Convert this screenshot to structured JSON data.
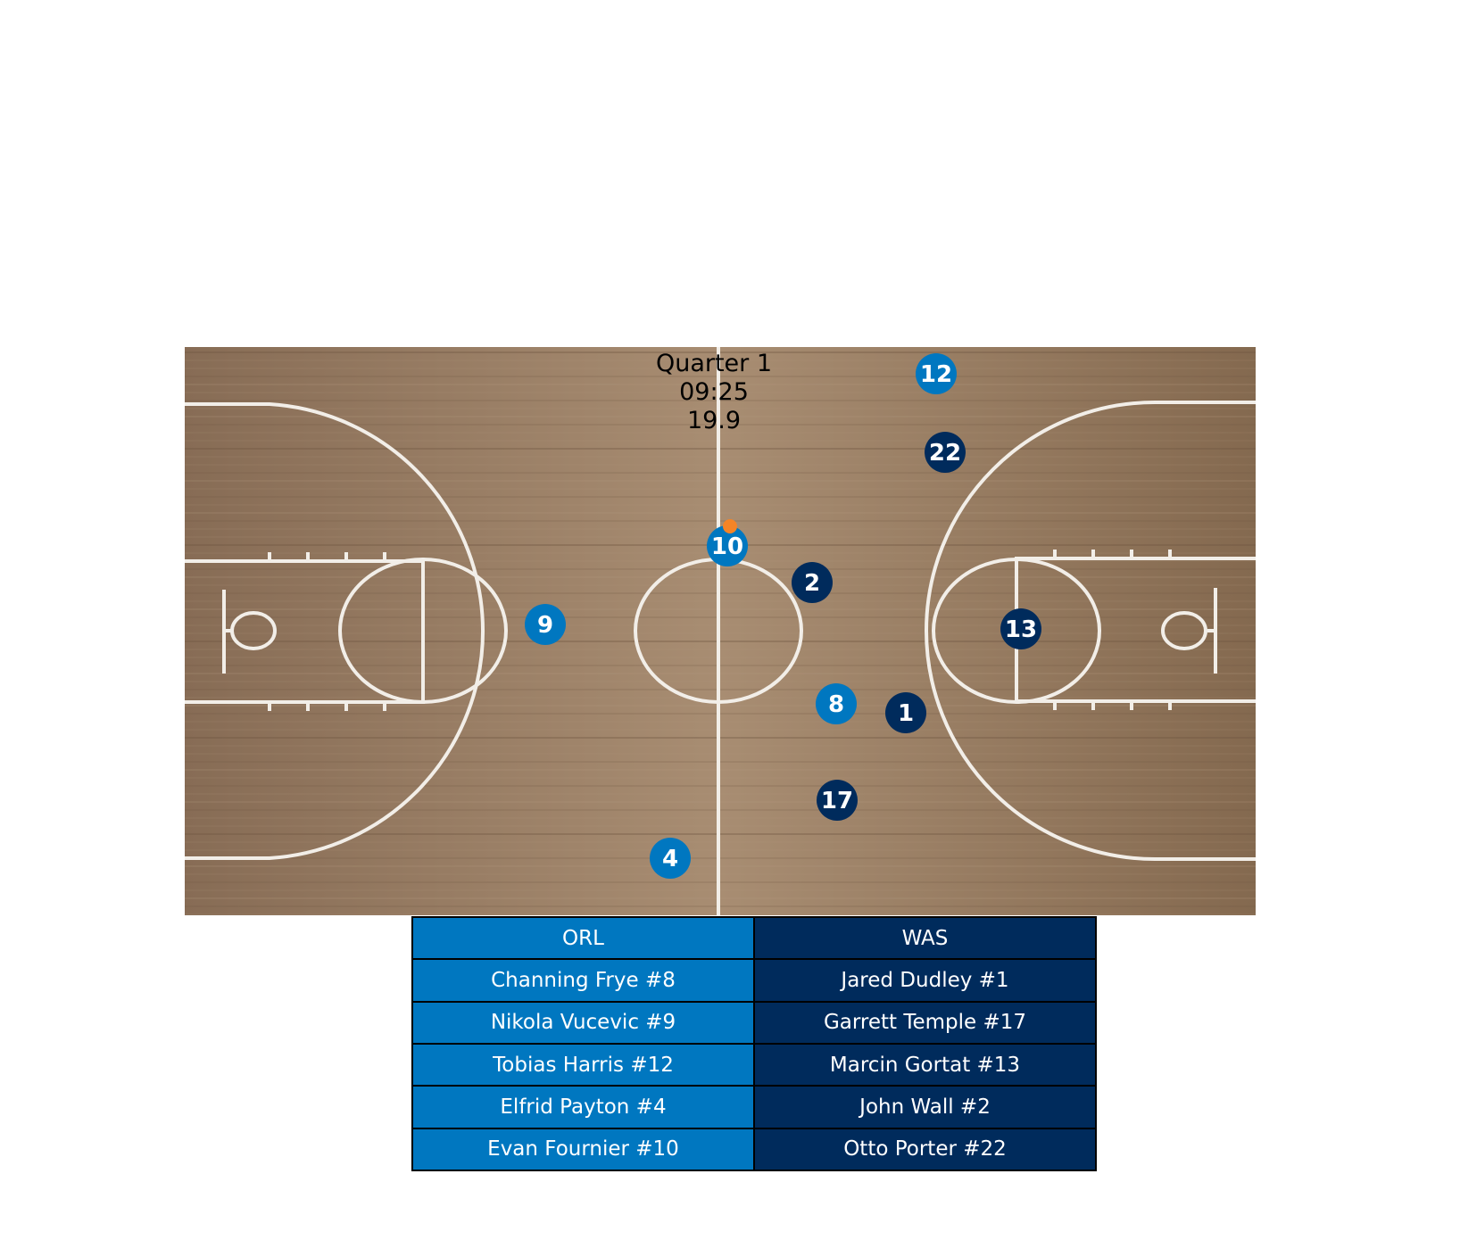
{
  "game_clock": {
    "quarter": "Quarter 1",
    "time": "09:25",
    "shot_clock": "19.9"
  },
  "teams": {
    "home": {
      "abbr": "ORL",
      "color": "#0077c0"
    },
    "away": {
      "abbr": "WAS",
      "color": "#002b5c"
    }
  },
  "ball": {
    "color": "#f58426"
  },
  "players_on_court": [
    {
      "team": "ORL",
      "number": "12"
    },
    {
      "team": "WAS",
      "number": "22"
    },
    {
      "team": "ORL",
      "number": "10"
    },
    {
      "team": "WAS",
      "number": "2"
    },
    {
      "team": "ORL",
      "number": "9"
    },
    {
      "team": "WAS",
      "number": "13"
    },
    {
      "team": "ORL",
      "number": "8"
    },
    {
      "team": "WAS",
      "number": "1"
    },
    {
      "team": "WAS",
      "number": "17"
    },
    {
      "team": "ORL",
      "number": "4"
    }
  ],
  "roster": {
    "header": {
      "orl": "ORL",
      "was": "WAS"
    },
    "rows": [
      {
        "orl": "Channing Frye #8",
        "was": "Jared Dudley #1"
      },
      {
        "orl": "Nikola Vucevic #9",
        "was": "Garrett Temple #17"
      },
      {
        "orl": "Tobias Harris #12",
        "was": "Marcin Gortat #13"
      },
      {
        "orl": "Elfrid Payton #4",
        "was": "John Wall #2"
      },
      {
        "orl": "Evan Fournier #10",
        "was": "Otto Porter #22"
      }
    ]
  },
  "court_colors": {
    "floor": "#9a7b61",
    "lines": "#f2eee8"
  }
}
